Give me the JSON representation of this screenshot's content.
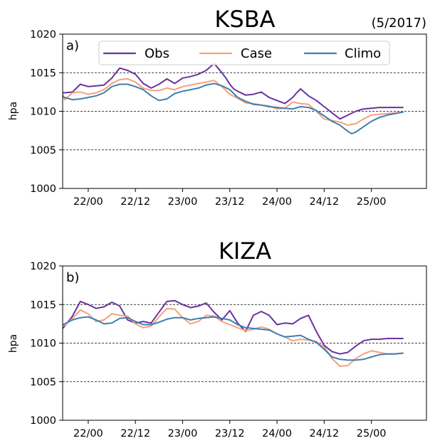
{
  "figure": {
    "date_label": "(5/2017)"
  },
  "colors": {
    "obs": "#6a329f",
    "case": "#f7a07a",
    "climo": "#3e7fb0"
  },
  "chart_data": [
    {
      "type": "line",
      "title": "KSBA",
      "panel_label": "a)",
      "ylabel": "hpa",
      "xlabel": "",
      "ylim": [
        1000,
        1020
      ],
      "yticks": [
        1000,
        1005,
        1010,
        1015,
        1020
      ],
      "xlim": [
        -6.5,
        86
      ],
      "xticks": [
        0,
        12,
        24,
        36,
        48,
        60,
        72
      ],
      "xtick_labels": [
        "22/00",
        "22/12",
        "23/00",
        "23/12",
        "24/00",
        "24/12",
        "25/00"
      ],
      "gridlines_y": [
        1005,
        1010,
        1015
      ],
      "legend": {
        "placement": "top-center",
        "ncol": 3
      },
      "series": [
        {
          "name": "Obs",
          "color_key": "obs",
          "x": [
            -7,
            -6,
            -4,
            -2,
            0,
            2,
            4,
            6,
            8,
            10,
            12,
            14,
            16,
            18,
            20,
            22,
            24,
            26,
            28,
            30,
            32,
            34,
            35,
            36,
            37,
            38,
            40,
            42,
            44,
            46,
            48,
            50,
            52,
            53,
            54,
            56,
            58,
            60,
            62,
            64,
            66,
            68,
            70,
            72,
            74,
            76,
            78,
            80
          ],
          "values": [
            1012.5,
            1012.4,
            1012.5,
            1013.5,
            1013.2,
            1013.3,
            1013.4,
            1014.3,
            1015.6,
            1015.3,
            1014.8,
            1013.6,
            1013.0,
            1013.5,
            1014.2,
            1013.6,
            1014.3,
            1014.5,
            1014.8,
            1015.3,
            1016.2,
            1015.0,
            1014.3,
            1013.5,
            1012.9,
            1012.6,
            1012.1,
            1012.2,
            1012.5,
            1011.8,
            1011.4,
            1011.0,
            1011.8,
            1012.4,
            1012.9,
            1012.0,
            1011.4,
            1010.6,
            1009.8,
            1009.0,
            1009.5,
            1010.0,
            1010.3,
            1010.4,
            1010.5,
            1010.5,
            1010.5,
            1010.5
          ]
        },
        {
          "name": "Case",
          "color_key": "case",
          "x": [
            -7,
            -6,
            -4,
            -2,
            0,
            2,
            4,
            6,
            8,
            10,
            12,
            14,
            16,
            18,
            20,
            22,
            24,
            26,
            28,
            30,
            32,
            34,
            36,
            38,
            40,
            42,
            44,
            46,
            48,
            50,
            52,
            54,
            56,
            58,
            60,
            62,
            64,
            66,
            68,
            70,
            72,
            74,
            76,
            78,
            80
          ],
          "values": [
            1013.2,
            1011.5,
            1012.4,
            1012.5,
            1012.2,
            1012.4,
            1012.8,
            1013.6,
            1014.1,
            1014.2,
            1013.8,
            1013.0,
            1012.7,
            1012.7,
            1013.0,
            1012.8,
            1013.2,
            1013.4,
            1013.6,
            1013.8,
            1014.0,
            1013.2,
            1012.2,
            1011.7,
            1011.1,
            1011.0,
            1010.8,
            1010.7,
            1010.3,
            1010.4,
            1011.2,
            1011.0,
            1010.9,
            1010.0,
            1009.0,
            1008.8,
            1008.6,
            1008.2,
            1008.4,
            1009.0,
            1009.5,
            1009.6,
            1009.7,
            1009.8,
            1009.9
          ]
        },
        {
          "name": "Climo",
          "color_key": "climo",
          "x": [
            -7,
            -6,
            -4,
            -2,
            0,
            2,
            4,
            6,
            8,
            10,
            12,
            14,
            16,
            18,
            20,
            22,
            24,
            26,
            28,
            30,
            32,
            34,
            36,
            38,
            40,
            42,
            44,
            46,
            48,
            50,
            52,
            54,
            56,
            58,
            60,
            62,
            64,
            66,
            67,
            68,
            70,
            72,
            74,
            76,
            78,
            80
          ],
          "values": [
            1012.0,
            1011.8,
            1011.5,
            1011.6,
            1011.8,
            1012.0,
            1012.4,
            1013.2,
            1013.5,
            1013.5,
            1013.2,
            1012.8,
            1012.0,
            1011.4,
            1011.6,
            1012.3,
            1012.6,
            1012.8,
            1013.0,
            1013.4,
            1013.6,
            1013.3,
            1012.8,
            1011.8,
            1011.3,
            1010.9,
            1010.8,
            1010.6,
            1010.5,
            1010.4,
            1010.3,
            1010.6,
            1010.5,
            1010.1,
            1009.4,
            1008.7,
            1008.2,
            1007.4,
            1007.1,
            1007.3,
            1008.0,
            1008.7,
            1009.2,
            1009.5,
            1009.7,
            1009.9
          ]
        }
      ]
    },
    {
      "type": "line",
      "title": "KIZA",
      "panel_label": "b)",
      "ylabel": "hpa",
      "xlabel": "",
      "ylim": [
        1000,
        1020
      ],
      "yticks": [
        1000,
        1005,
        1010,
        1015,
        1020
      ],
      "xlim": [
        -6.5,
        86
      ],
      "xticks": [
        0,
        12,
        24,
        36,
        48,
        60,
        72
      ],
      "xtick_labels": [
        "22/00",
        "22/12",
        "23/00",
        "23/12",
        "24/00",
        "24/12",
        "25/00"
      ],
      "gridlines_y": [
        1005,
        1010,
        1015
      ],
      "legend": null,
      "series": [
        {
          "name": "Obs",
          "color_key": "obs",
          "x": [
            -7,
            -6,
            -4,
            -2,
            0,
            2,
            4,
            6,
            8,
            10,
            12,
            14,
            16,
            18,
            20,
            22,
            24,
            26,
            28,
            30,
            32,
            34,
            36,
            38,
            40,
            42,
            44,
            46,
            48,
            50,
            52,
            54,
            56,
            58,
            60,
            62,
            64,
            66,
            68,
            70,
            72,
            74,
            76,
            78,
            80
          ],
          "values": [
            1011.6,
            1012.2,
            1013.5,
            1015.4,
            1015.0,
            1014.5,
            1014.7,
            1015.3,
            1014.8,
            1013.0,
            1012.6,
            1012.8,
            1012.6,
            1014.0,
            1015.4,
            1015.5,
            1015.0,
            1014.6,
            1014.8,
            1015.2,
            1014.0,
            1013.0,
            1014.2,
            1012.6,
            1011.5,
            1013.6,
            1014.1,
            1013.6,
            1012.4,
            1012.6,
            1012.5,
            1013.2,
            1013.6,
            1011.5,
            1009.7,
            1008.9,
            1008.6,
            1008.8,
            1009.6,
            1010.3,
            1010.5,
            1010.5,
            1010.6,
            1010.6,
            1010.6
          ]
        },
        {
          "name": "Case",
          "color_key": "case",
          "x": [
            -7,
            -6,
            -4,
            -2,
            0,
            2,
            4,
            6,
            8,
            10,
            12,
            14,
            16,
            18,
            20,
            22,
            24,
            26,
            28,
            30,
            32,
            34,
            36,
            38,
            40,
            42,
            44,
            46,
            48,
            50,
            52,
            54,
            56,
            58,
            60,
            62,
            64,
            66,
            68,
            70,
            72,
            74,
            76,
            78,
            80
          ],
          "values": [
            1012.5,
            1012.3,
            1013.2,
            1014.3,
            1013.8,
            1012.8,
            1013.0,
            1013.8,
            1013.6,
            1013.5,
            1012.5,
            1012.0,
            1012.2,
            1013.4,
            1014.5,
            1014.4,
            1013.3,
            1012.5,
            1012.8,
            1013.6,
            1013.5,
            1012.8,
            1012.4,
            1012.0,
            1011.6,
            1011.8,
            1012.1,
            1011.8,
            1011.2,
            1010.8,
            1010.3,
            1010.5,
            1010.4,
            1010.2,
            1009.5,
            1008.0,
            1007.0,
            1007.1,
            1008.0,
            1008.6,
            1009.0,
            1008.8,
            1008.6,
            1008.6,
            1008.7
          ]
        },
        {
          "name": "Climo",
          "color_key": "climo",
          "x": [
            -7,
            -6,
            -4,
            -2,
            0,
            2,
            4,
            6,
            8,
            10,
            12,
            14,
            16,
            18,
            20,
            22,
            24,
            26,
            28,
            30,
            32,
            34,
            36,
            38,
            40,
            42,
            44,
            46,
            48,
            50,
            52,
            54,
            56,
            58,
            60,
            62,
            64,
            66,
            68,
            70,
            72,
            74,
            76,
            78,
            80
          ],
          "values": [
            1012.2,
            1012.5,
            1013.0,
            1013.3,
            1013.4,
            1013.0,
            1012.5,
            1012.6,
            1013.2,
            1013.3,
            1012.8,
            1012.4,
            1012.4,
            1012.7,
            1013.1,
            1013.3,
            1013.3,
            1013.0,
            1013.2,
            1013.3,
            1013.4,
            1013.2,
            1013.0,
            1012.4,
            1012.0,
            1011.9,
            1011.8,
            1011.7,
            1011.2,
            1010.8,
            1010.9,
            1011.0,
            1010.5,
            1010.1,
            1009.2,
            1008.2,
            1007.9,
            1007.8,
            1007.8,
            1007.9,
            1008.2,
            1008.5,
            1008.6,
            1008.6,
            1008.7
          ]
        }
      ]
    }
  ]
}
